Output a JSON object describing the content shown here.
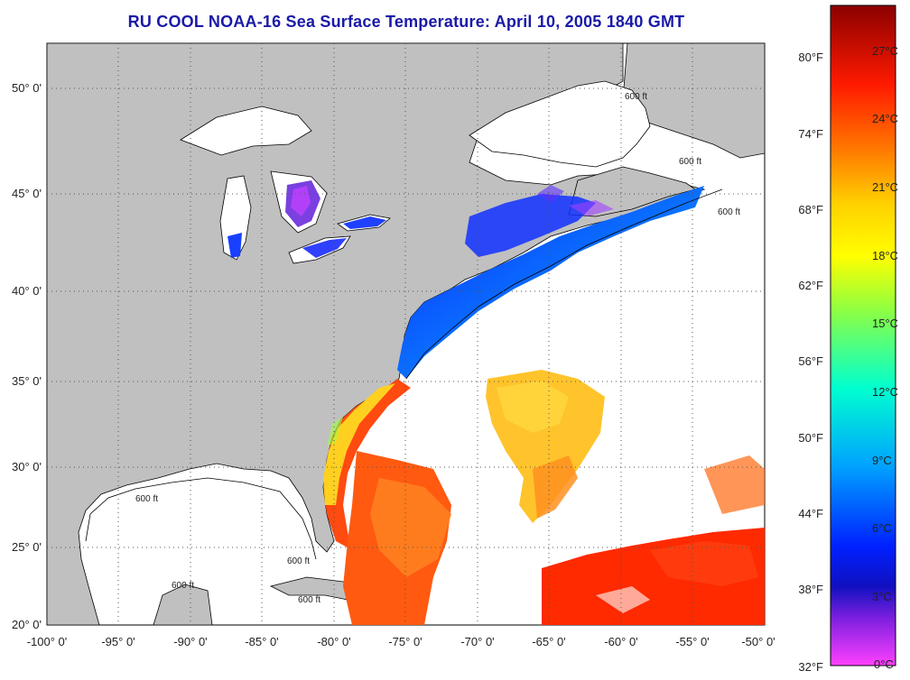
{
  "title": "RU COOL  NOAA-16  Sea Surface Temperature:  April 10, 2005 1840 GMT",
  "lat_labels": [
    "50° 0'",
    "45° 0'",
    "40° 0'",
    "35° 0'",
    "30° 0'",
    "25° 0'",
    "20° 0'"
  ],
  "lon_labels": [
    "-100° 0'",
    "-95° 0'",
    "-90° 0'",
    "-85° 0'",
    "-80° 0'",
    "-75° 0'",
    "-70° 0'",
    "-65° 0'",
    "-60° 0'",
    "-55° 0'",
    "-50° 0'"
  ],
  "contour_labels": [
    "600 ft",
    "600 ft",
    "600 ft",
    "600 ft",
    "600 ft",
    "600 ft",
    "600 ft"
  ],
  "colorbar": {
    "fahrenheit": [
      "80°F",
      "74°F",
      "68°F",
      "62°F",
      "56°F",
      "50°F",
      "44°F",
      "38°F",
      "32°F"
    ],
    "celsius": [
      "27°C",
      "24°C",
      "21°C",
      "18°C",
      "15°C",
      "12°C",
      "9°C",
      "6°C",
      "3°C",
      "0°C"
    ],
    "colors": [
      "#8b0000",
      "#ff1a00",
      "#ff7a00",
      "#ffd000",
      "#ffff00",
      "#90ff40",
      "#00ffd0",
      "#00a0ff",
      "#0020ff",
      "#8020e0",
      "#ff40ff"
    ]
  },
  "colors": {
    "land": "#c0c0c0",
    "cloud": "#ffffff",
    "title": "#1a1aa8",
    "grid": "#555555"
  }
}
